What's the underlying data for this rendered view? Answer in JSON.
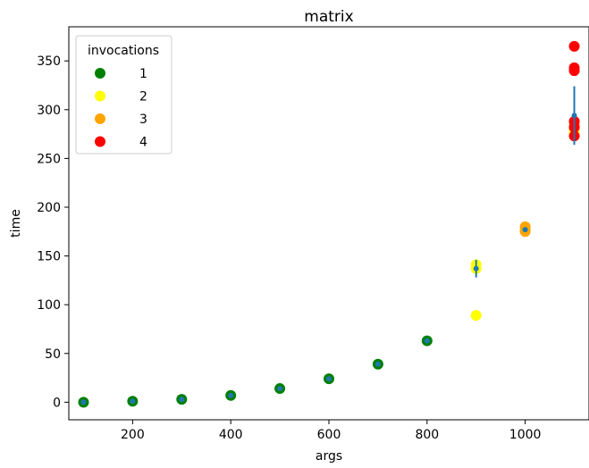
{
  "chart_data": {
    "type": "scatter",
    "title": "matrix",
    "xlabel": "args",
    "ylabel": "time",
    "xlim": [
      70,
      1130
    ],
    "ylim": [
      -18,
      385
    ],
    "xticks": [
      200,
      400,
      600,
      800,
      1000
    ],
    "yticks": [
      0,
      50,
      100,
      150,
      200,
      250,
      300,
      350
    ],
    "grid": false,
    "legend": {
      "title": "invocations",
      "placement": "top-left",
      "entries": [
        {
          "label": "1",
          "color": "#008000"
        },
        {
          "label": "2",
          "color": "#ffff00"
        },
        {
          "label": "3",
          "color": "#ffa500"
        },
        {
          "label": "4",
          "color": "#ff0000"
        }
      ]
    },
    "series": [
      {
        "name": "1",
        "color": "#008000",
        "x": [
          100,
          200,
          300,
          400,
          500,
          600,
          700,
          800
        ],
        "y": [
          0,
          1,
          3,
          7,
          14,
          24,
          39,
          63
        ]
      },
      {
        "name": "2",
        "color": "#ffff00",
        "x": [
          900,
          900,
          900,
          1100,
          1100
        ],
        "y": [
          89,
          137,
          141,
          276,
          280
        ]
      },
      {
        "name": "3",
        "color": "#ffa500",
        "x": [
          1000,
          1000,
          1000,
          1100,
          1100
        ],
        "y": [
          175,
          177,
          180,
          283,
          287
        ]
      },
      {
        "name": "4",
        "color": "#ff0000",
        "x": [
          1100,
          1100,
          1100,
          1100,
          1100,
          1100
        ],
        "y": [
          365,
          343,
          340,
          288,
          282,
          273
        ]
      }
    ],
    "mean_series": {
      "color": "#1f77b4",
      "x": [
        100,
        200,
        300,
        400,
        500,
        600,
        700,
        800,
        900,
        1000,
        1100
      ],
      "y": [
        0,
        1,
        3,
        7,
        14,
        24,
        39,
        63,
        137,
        177,
        294
      ],
      "error": [
        0,
        0,
        0,
        0,
        0,
        0,
        0,
        0,
        9,
        2,
        30
      ]
    }
  }
}
